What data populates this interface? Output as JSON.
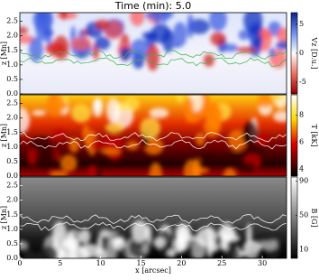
{
  "chart_data": [
    {
      "type": "heatmap",
      "title": "Time (min): 5.0",
      "ylabel": "z [Mn]",
      "ylim": [
        0,
        2.8
      ],
      "yticks": [
        {
          "value": 0,
          "label": "0.0"
        },
        0.5,
        {
          "value": 1,
          "label": "1.0"
        },
        1.5,
        {
          "value": 2,
          "label": "2.0"
        },
        2.5
      ],
      "colorbar_label": "Vz [D.u.]",
      "clim": [
        -7,
        7
      ],
      "cticks": [
        -5,
        0,
        5
      ],
      "cmap": "bwr",
      "contour_color": "#3cb44b"
    },
    {
      "type": "heatmap",
      "ylabel": "z [Mn]",
      "ylim": [
        0,
        2.8
      ],
      "yticks": [
        {
          "value": 0,
          "label": "0.0"
        },
        0.5,
        {
          "value": 1,
          "label": "1.0"
        },
        1.5,
        {
          "value": 2,
          "label": "2.0"
        },
        2.5
      ],
      "colorbar_label": "T [kK]",
      "clim": [
        3.5,
        9.5
      ],
      "cticks": [
        4,
        6,
        8
      ],
      "cmap": "hot",
      "contour_color": "#ffffff"
    },
    {
      "type": "heatmap",
      "ylabel": "z [Mn]",
      "ylim": [
        0,
        2.8
      ],
      "yticks": [
        {
          "value": 0,
          "label": "0.0"
        },
        0.5,
        {
          "value": 1,
          "label": "1.0"
        },
        1.5,
        {
          "value": 2,
          "label": "2.0"
        },
        2.5
      ],
      "colorbar_label": "B [G]",
      "clim": [
        0,
        95
      ],
      "cticks": [
        10,
        50,
        90
      ],
      "cmap": "gray",
      "contour_color": "#ffffff",
      "xlabel": "x [arcsec]",
      "xlim": [
        0,
        33
      ],
      "xticks": [
        0,
        5,
        10,
        15,
        20,
        25,
        30
      ]
    }
  ]
}
